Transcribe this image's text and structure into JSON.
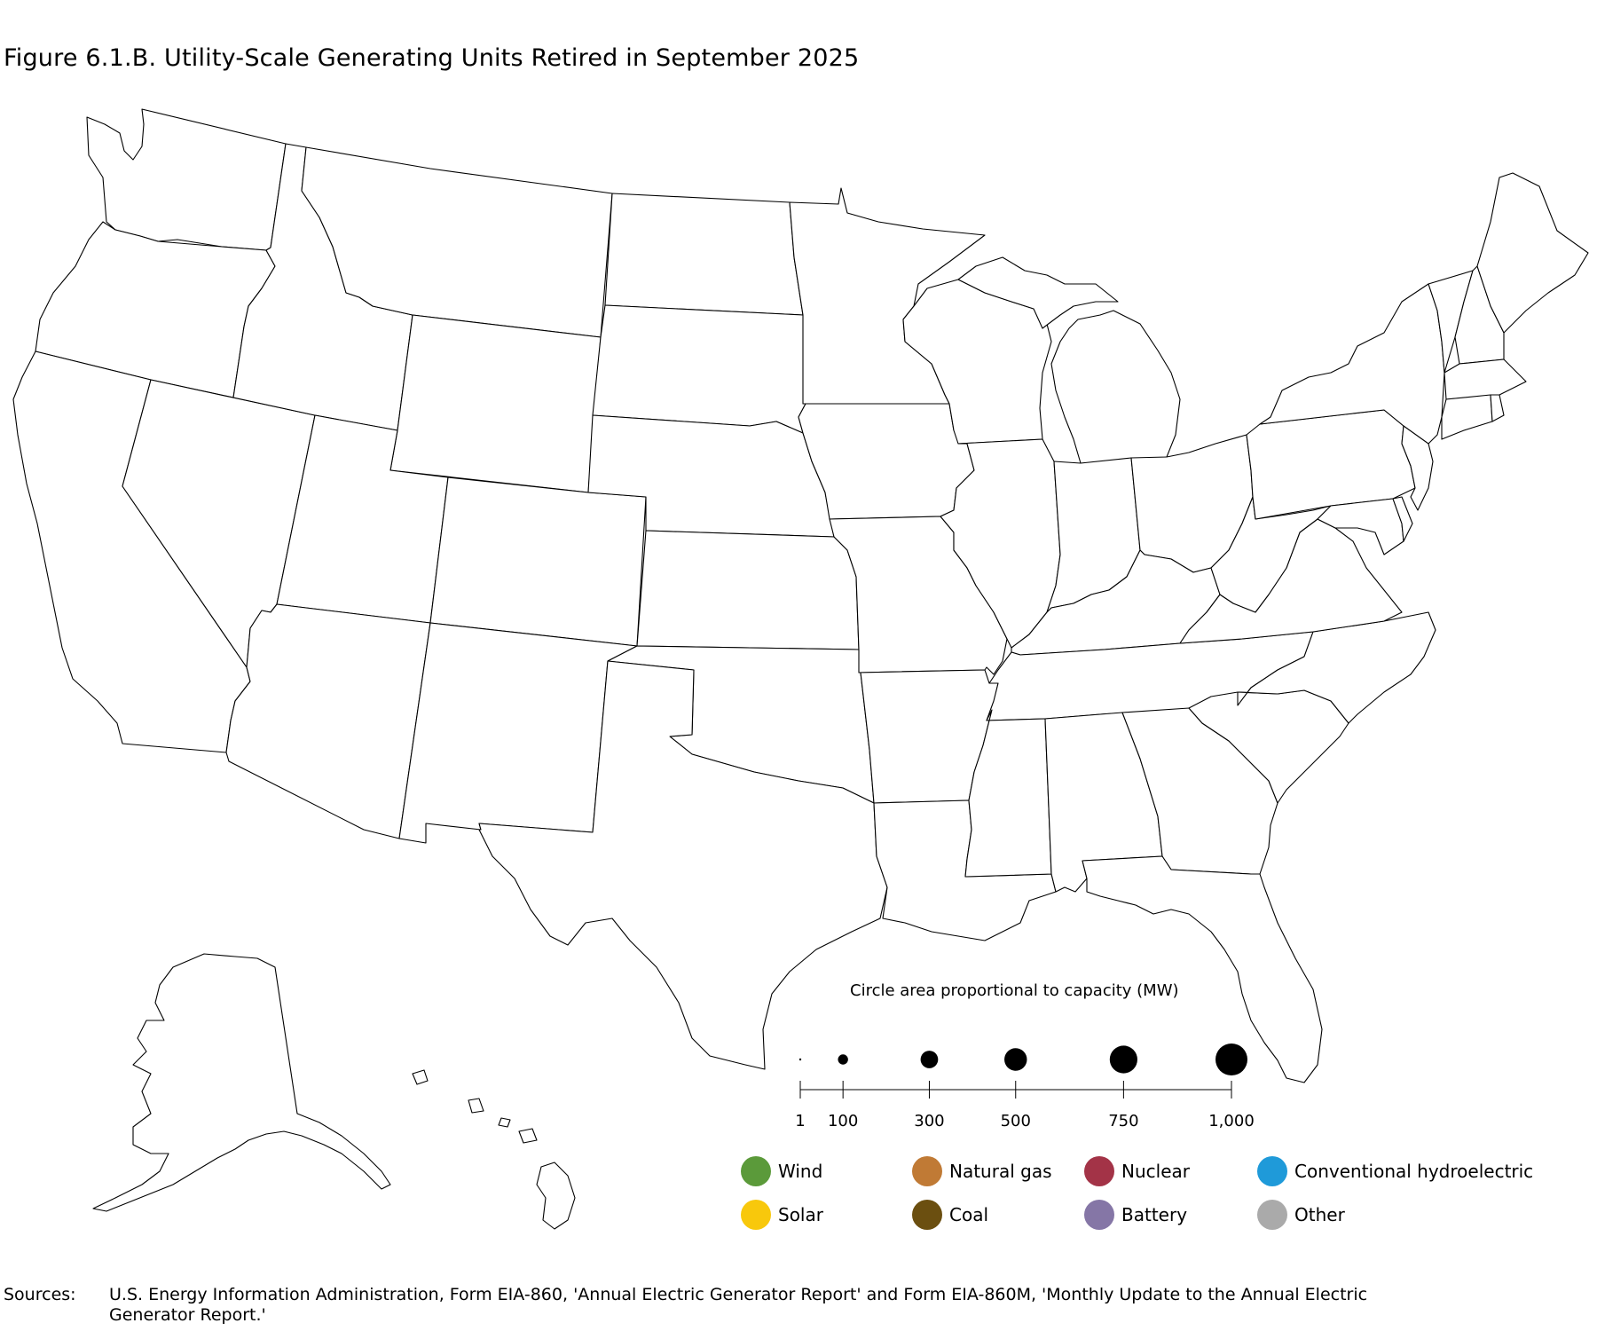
{
  "title": "Figure 6.1.B. Utility-Scale Generating Units Retired in September 2025",
  "size_legend": {
    "title": "Circle area proportional to capacity (MW)",
    "ticks": [
      {
        "value": 1,
        "label": "1"
      },
      {
        "value": 100,
        "label": "100"
      },
      {
        "value": 300,
        "label": "300"
      },
      {
        "value": 500,
        "label": "500"
      },
      {
        "value": 750,
        "label": "750"
      },
      {
        "value": 1000,
        "label": "1,000"
      }
    ]
  },
  "fuel_legend": [
    {
      "label": "Wind",
      "color": "#5b9a3a"
    },
    {
      "label": "Natural gas",
      "color": "#c07a35"
    },
    {
      "label": "Nuclear",
      "color": "#a33347"
    },
    {
      "label": "Conventional hydroelectric",
      "color": "#1f9ad9"
    },
    {
      "label": "Solar",
      "color": "#f8c80c"
    },
    {
      "label": "Coal",
      "color": "#6b4f10"
    },
    {
      "label": "Battery",
      "color": "#8576a6"
    },
    {
      "label": "Other",
      "color": "#aaaaaa"
    }
  ],
  "sources": {
    "label": "Sources:",
    "text": "U.S. Energy Information Administration, Form EIA-860, 'Annual Electric Generator Report' and Form EIA-860M, 'Monthly Update to the Annual Electric Generator Report.'"
  }
}
